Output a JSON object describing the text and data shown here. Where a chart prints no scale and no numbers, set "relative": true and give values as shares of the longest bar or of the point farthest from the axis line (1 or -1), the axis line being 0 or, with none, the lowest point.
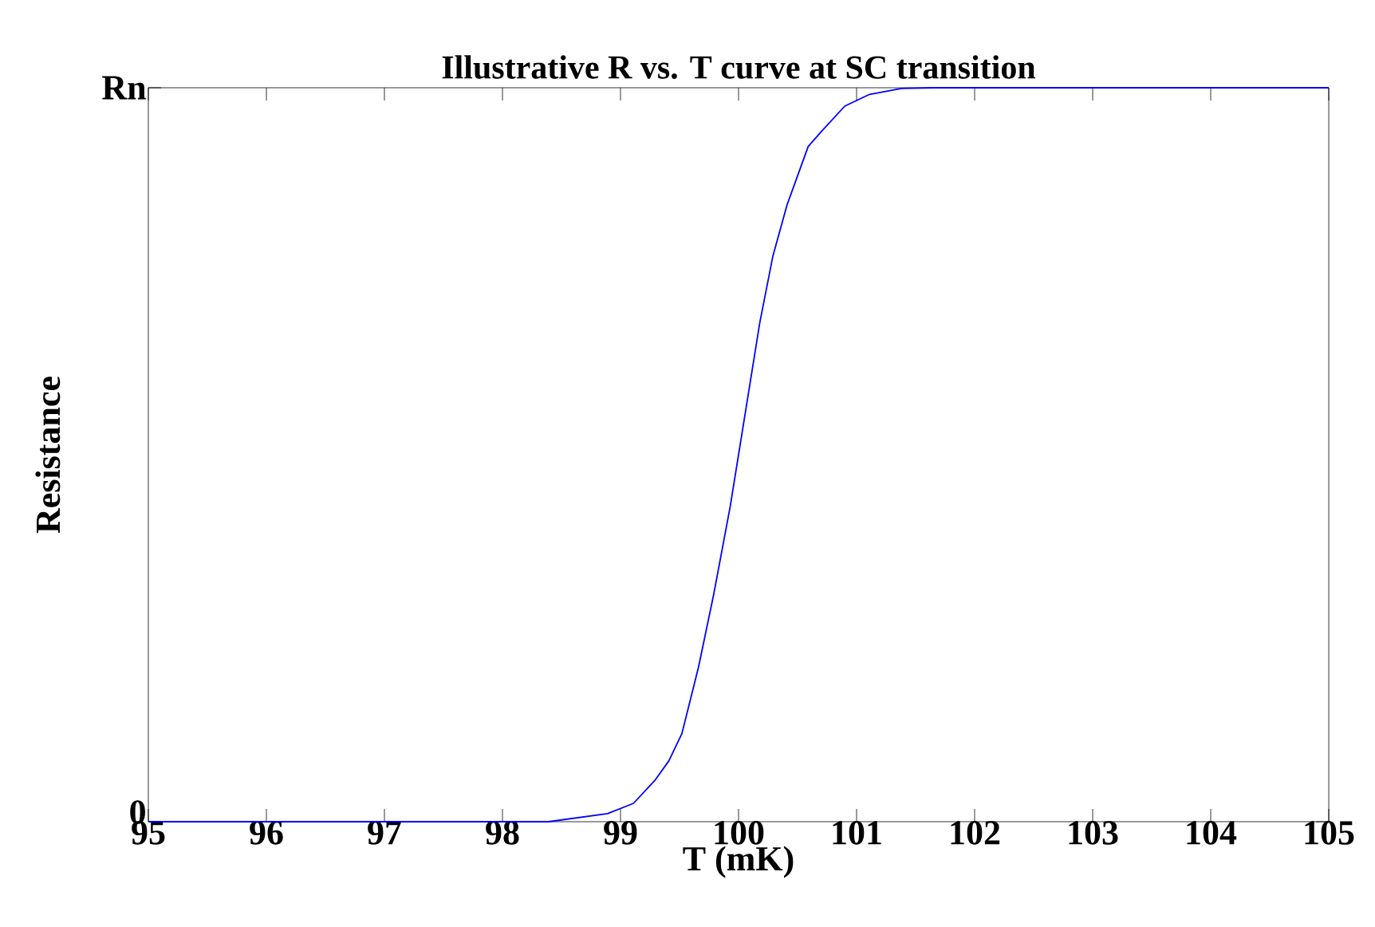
{
  "chart_data": {
    "type": "line",
    "title": "Illustrative R vs. T curve at SC transition",
    "xlabel": "T (mK)",
    "ylabel": "Resistance",
    "xlim": [
      95,
      105
    ],
    "xticks": [
      95,
      96,
      97,
      98,
      99,
      100,
      101,
      102,
      103,
      104,
      105
    ],
    "relative": true,
    "annotations": [
      "0",
      "Rn"
    ],
    "grid": false,
    "marker": "none",
    "line_style": "solid",
    "series": [
      {
        "color": "#0000ff",
        "x": [
          95,
          98,
          98.39,
          98.89,
          99.11,
          99.29,
          99.41,
          99.52,
          99.66,
          99.79,
          99.93,
          100.07,
          100.18,
          100.29,
          100.41,
          100.5,
          100.59,
          100.7,
          100.9,
          101.11,
          101.38,
          101.65,
          105
        ],
        "values": [
          0,
          0,
          0,
          0.011,
          0.025,
          0.056,
          0.083,
          0.12,
          0.21,
          0.31,
          0.43,
          0.57,
          0.68,
          0.77,
          0.84,
          0.88,
          0.92,
          0.94,
          0.975,
          0.991,
          0.999,
          1,
          1
        ]
      }
    ]
  }
}
